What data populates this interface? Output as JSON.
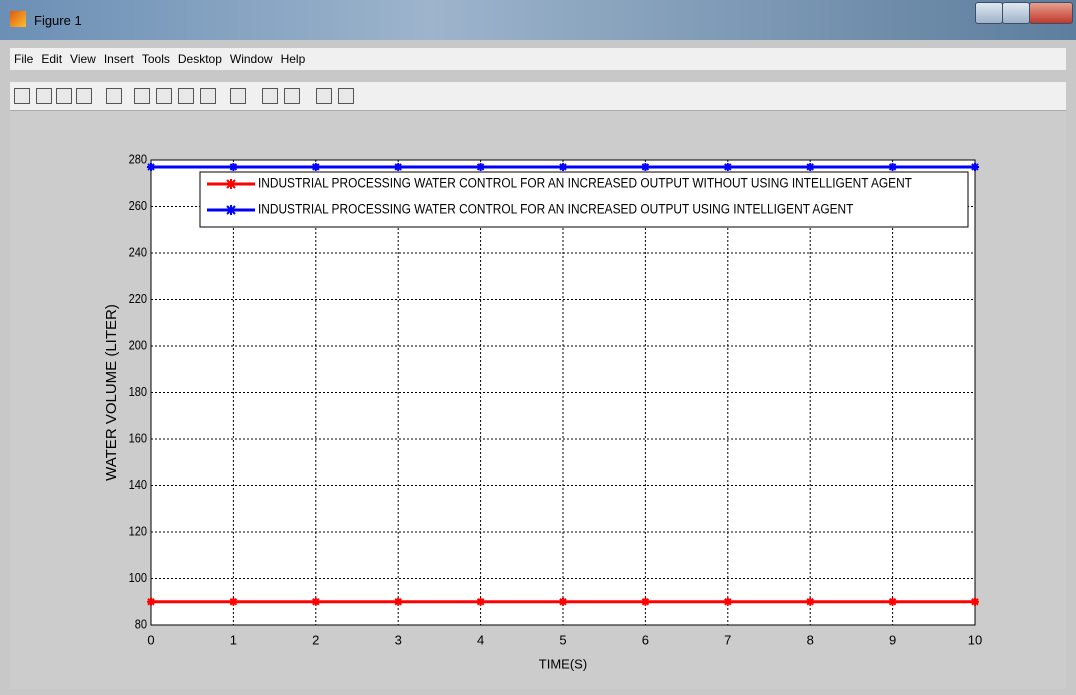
{
  "window": {
    "title": "Figure 1",
    "menu": [
      "File",
      "Edit",
      "View",
      "Insert",
      "Tools",
      "Desktop",
      "Window",
      "Help"
    ]
  },
  "chart_data": {
    "type": "line",
    "x_label": "TIME(S)",
    "y_label": "WATER VOLUME (LITER)",
    "x": [
      0,
      1,
      2,
      3,
      4,
      5,
      6,
      7,
      8,
      9,
      10
    ],
    "series": [
      {
        "name": "INDUSTRIAL PROCESSING WATER CONTROL FOR AN INCREASED OUTPUT WITHOUT USING INTELLIGENT AGENT",
        "color": "#ff0000",
        "values": [
          90,
          90,
          90,
          90,
          90,
          90,
          90,
          90,
          90,
          90,
          90
        ]
      },
      {
        "name": "INDUSTRIAL PROCESSING WATER CONTROL FOR AN INCREASED OUTPUT USING INTELLIGENT AGENT",
        "color": "#0000ff",
        "values": [
          277,
          277,
          277,
          277,
          277,
          277,
          277,
          277,
          277,
          277,
          277
        ]
      }
    ],
    "xlim": [
      0,
      10
    ],
    "xticks": [
      0,
      1,
      2,
      3,
      4,
      5,
      6,
      7,
      8,
      9,
      10
    ],
    "ylim": [
      80,
      280
    ],
    "yticks": [
      80,
      100,
      120,
      140,
      160,
      180,
      200,
      220,
      240,
      260,
      280
    ],
    "grid": true,
    "legend": "top"
  }
}
